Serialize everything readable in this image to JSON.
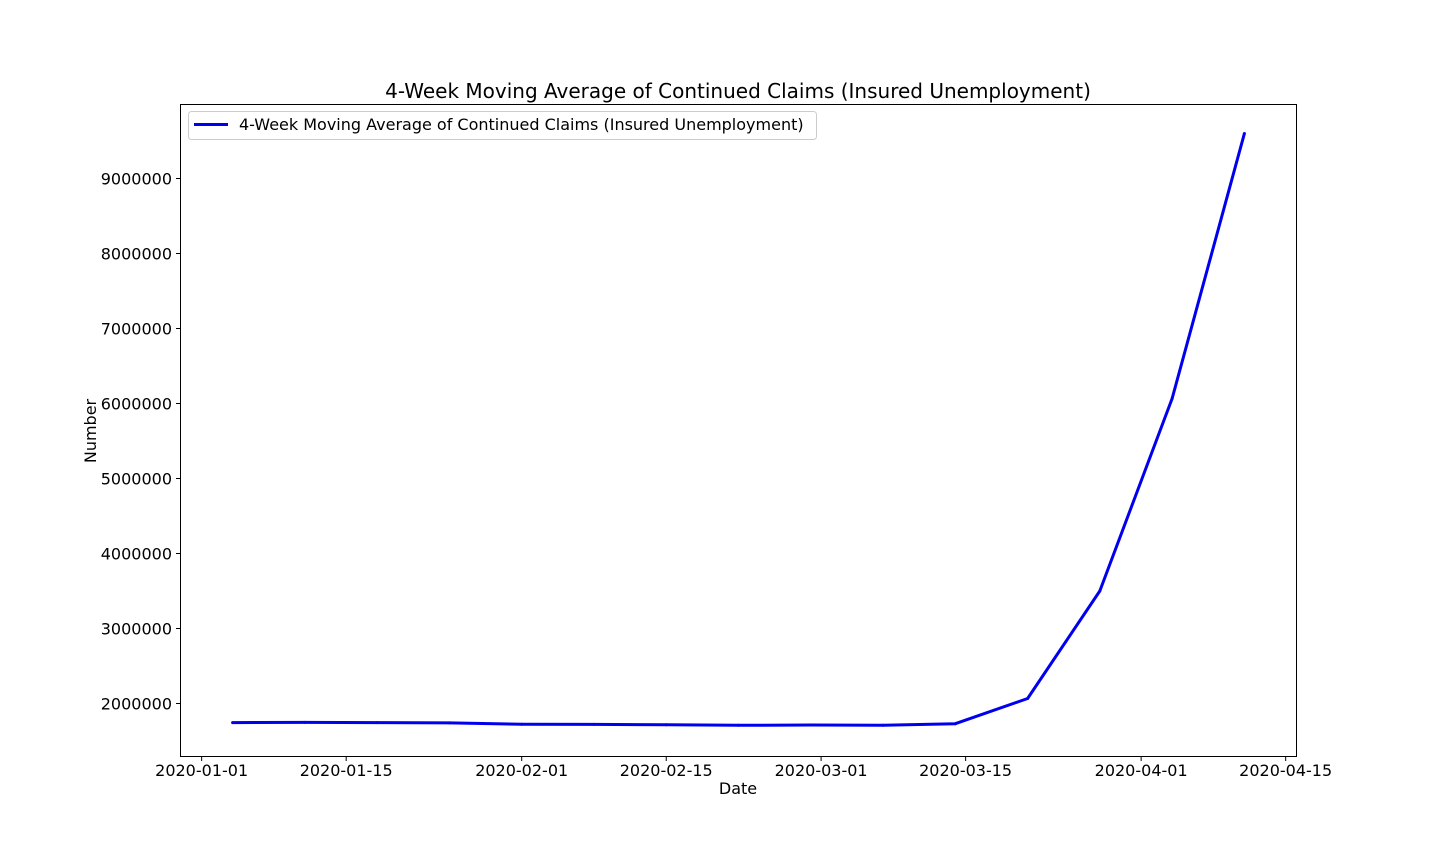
{
  "chart_data": {
    "type": "line",
    "title": "4-Week Moving Average of Continued Claims (Insured Unemployment)",
    "xlabel": "Date",
    "ylabel": "Number",
    "x_tick_labels": [
      "2020-01-01",
      "2020-01-15",
      "2020-02-01",
      "2020-02-15",
      "2020-03-01",
      "2020-03-15",
      "2020-04-01",
      "2020-04-15"
    ],
    "y_tick_labels": [
      "2000000",
      "3000000",
      "4000000",
      "5000000",
      "6000000",
      "7000000",
      "8000000",
      "9000000"
    ],
    "y_ticks": [
      2000000,
      3000000,
      4000000,
      5000000,
      6000000,
      7000000,
      8000000,
      9000000
    ],
    "xlim": [
      "2019-12-30",
      "2020-04-16"
    ],
    "ylim": [
      1300000,
      9980000
    ],
    "grid": false,
    "legend": "top-left",
    "series": [
      {
        "name": "4-Week Moving Average of Continued Claims (Insured Unemployment)",
        "color": "#0000ee",
        "x": [
          "2020-01-04",
          "2020-01-11",
          "2020-01-18",
          "2020-01-25",
          "2020-02-01",
          "2020-02-08",
          "2020-02-15",
          "2020-02-22",
          "2020-02-29",
          "2020-03-07",
          "2020-03-14",
          "2020-03-21",
          "2020-03-28",
          "2020-04-04",
          "2020-04-11"
        ],
        "values": [
          1745000,
          1748000,
          1745000,
          1741000,
          1724000,
          1721000,
          1716000,
          1709000,
          1714000,
          1710000,
          1731000,
          2066000,
          3500000,
          6065000,
          9600000
        ]
      }
    ]
  }
}
